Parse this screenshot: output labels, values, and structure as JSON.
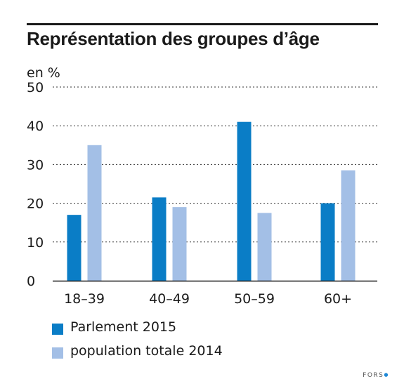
{
  "chart_data": {
    "type": "bar",
    "title": "Représentation des groupes d’âge",
    "ylabel": "en %",
    "xlabel": "",
    "categories": [
      "18–39",
      "40–49",
      "50–59",
      "60+"
    ],
    "series": [
      {
        "name": "Parlement 2015",
        "color": "#0a7dc6",
        "values": [
          17,
          21.5,
          41,
          20
        ]
      },
      {
        "name": "population totale 2014",
        "color": "#a3bfe6",
        "values": [
          35,
          19,
          17.5,
          28.5
        ]
      }
    ],
    "ylim": [
      0,
      50
    ],
    "yticks": [
      0,
      10,
      20,
      30,
      40,
      50
    ],
    "grid": "dashed-horizontal",
    "legend_position": "bottom-left"
  },
  "footer": {
    "logo": "FORS"
  }
}
